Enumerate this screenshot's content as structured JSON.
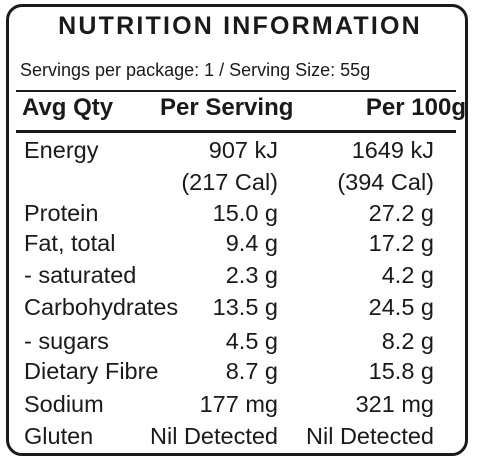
{
  "title": "NUTRITION INFORMATION",
  "serving_info": "Servings per package: 1 / Serving Size: 55g",
  "headers": {
    "qty": "Avg Qty",
    "per_serving": "Per Serving",
    "per_100g": "Per 100g"
  },
  "rows": [
    {
      "label": "Energy",
      "per_serving": "907 kJ",
      "per_100g": "1649 kJ"
    },
    {
      "label": "",
      "per_serving": "(217 Cal)",
      "per_100g": "(394 Cal)"
    },
    {
      "label": "Protein",
      "per_serving": "15.0 g",
      "per_100g": "27.2 g"
    },
    {
      "label": "Fat, total",
      "per_serving": "9.4 g",
      "per_100g": "17.2 g"
    },
    {
      "label": "- saturated",
      "per_serving": "2.3 g",
      "per_100g": "4.2 g"
    },
    {
      "label": "Carbohydrates",
      "per_serving": "13.5 g",
      "per_100g": "24.5 g"
    },
    {
      "label": "- sugars",
      "per_serving": "4.5 g",
      "per_100g": "8.2 g"
    },
    {
      "label": "Dietary Fibre",
      "per_serving": "8.7 g",
      "per_100g": "15.8 g"
    },
    {
      "label": "Sodium",
      "per_serving": "177 mg",
      "per_100g": "321 mg"
    },
    {
      "label": "Gluten",
      "per_serving": "Nil Detected",
      "per_100g": "Nil Detected"
    }
  ]
}
